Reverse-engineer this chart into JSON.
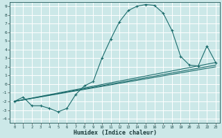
{
  "background_color": "#cce8e8",
  "grid_color": "#ffffff",
  "line_color": "#1a6b6b",
  "xlabel": "Humidex (Indice chaleur)",
  "xlim": [
    -0.5,
    23.5
  ],
  "ylim": [
    -4.5,
    9.5
  ],
  "xticks": [
    0,
    1,
    2,
    3,
    4,
    5,
    6,
    7,
    8,
    9,
    10,
    11,
    12,
    13,
    14,
    15,
    16,
    17,
    18,
    19,
    20,
    21,
    22,
    23
  ],
  "yticks": [
    -4,
    -3,
    -2,
    -1,
    0,
    1,
    2,
    3,
    4,
    5,
    6,
    7,
    8,
    9
  ],
  "main_line": {
    "x": [
      0,
      1,
      2,
      3,
      4,
      5,
      6,
      7,
      8,
      9,
      10,
      11,
      12,
      13,
      14,
      15,
      16,
      17,
      18,
      19,
      20,
      21,
      22,
      23
    ],
    "y": [
      -2.0,
      -1.5,
      -2.5,
      -2.5,
      -2.8,
      -3.2,
      -2.8,
      -1.2,
      -0.2,
      0.3,
      3.0,
      5.2,
      7.2,
      8.5,
      9.0,
      9.2,
      9.1,
      8.2,
      6.2,
      3.2,
      2.2,
      2.1,
      4.4,
      2.5
    ]
  },
  "ref_line1": {
    "x": [
      0,
      23
    ],
    "y": [
      -2.0,
      2.5
    ]
  },
  "ref_line2": {
    "x": [
      0,
      23
    ],
    "y": [
      -2.0,
      2.0
    ]
  },
  "ref_line3": {
    "x": [
      0,
      23
    ],
    "y": [
      -2.0,
      2.2
    ]
  }
}
